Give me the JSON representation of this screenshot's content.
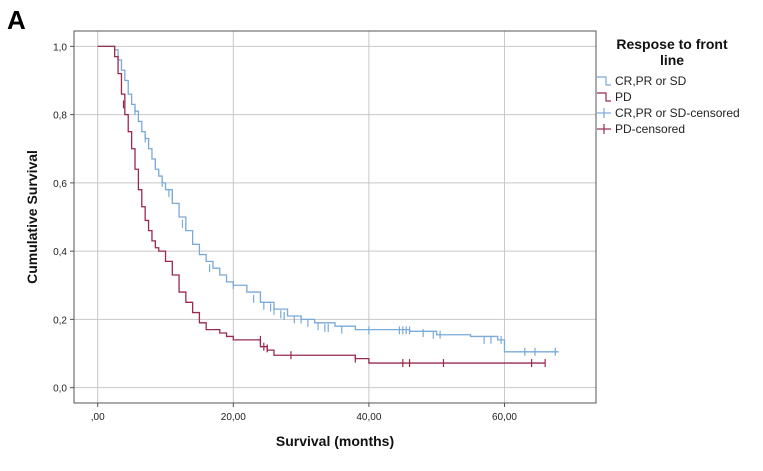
{
  "panel_label": "A",
  "chart_data": {
    "type": "line",
    "subtype": "kaplan-meier",
    "title": "",
    "xlabel": "Survival (months)",
    "ylabel": "Cumulative Survival",
    "xlim": [
      -3.5,
      73.5
    ],
    "ylim": [
      -0.045,
      1.045
    ],
    "xticks": [
      0,
      20,
      40,
      60
    ],
    "xtick_labels": [
      ",00",
      "20,00",
      "40,00",
      "60,00"
    ],
    "yticks": [
      0,
      0.2,
      0.4,
      0.6,
      0.8,
      1.0
    ],
    "ytick_labels": [
      "0,0",
      "0,2",
      "0,4",
      "0,6",
      "0,8",
      "1,0"
    ],
    "grid": true,
    "legend": {
      "title": "Respose to front line",
      "position": "right",
      "entries": [
        {
          "label": "CR,PR or SD",
          "kind": "line",
          "color": "#7aaad8"
        },
        {
          "label": "PD",
          "kind": "line",
          "color": "#9a2a4c"
        },
        {
          "label": "CR,PR or SD-censored",
          "kind": "censor",
          "color": "#7aaad8"
        },
        {
          "label": "PD-censored",
          "kind": "censor",
          "color": "#9a2a4c"
        }
      ]
    },
    "series": [
      {
        "name": "CR,PR or SD",
        "color": "#7aaad8",
        "x": [
          0,
          2,
          2.5,
          3,
          3.5,
          4,
          4.5,
          5,
          5.5,
          6,
          6.5,
          7,
          7.5,
          8,
          8.5,
          9,
          9.5,
          10,
          11,
          12,
          13,
          14,
          15,
          16,
          17,
          18,
          19,
          20,
          22,
          24,
          26,
          28,
          30,
          32,
          35,
          38,
          42,
          46,
          50,
          55,
          59,
          60,
          68
        ],
        "y": [
          1.0,
          1.0,
          0.99,
          0.96,
          0.93,
          0.9,
          0.86,
          0.83,
          0.81,
          0.78,
          0.75,
          0.73,
          0.7,
          0.67,
          0.64,
          0.62,
          0.6,
          0.58,
          0.54,
          0.5,
          0.46,
          0.42,
          0.39,
          0.37,
          0.35,
          0.33,
          0.31,
          0.3,
          0.28,
          0.25,
          0.23,
          0.21,
          0.2,
          0.19,
          0.18,
          0.17,
          0.17,
          0.165,
          0.155,
          0.15,
          0.14,
          0.105,
          0.105
        ]
      },
      {
        "name": "PD",
        "color": "#9a2a4c",
        "x": [
          0,
          2,
          2.5,
          3,
          3.5,
          4,
          4.5,
          5,
          5.5,
          6,
          6.5,
          7,
          7.5,
          8,
          8.5,
          9,
          10,
          11,
          12,
          13,
          14,
          15,
          16,
          17,
          18,
          19,
          20,
          22,
          24,
          25,
          26,
          30,
          38,
          40,
          50,
          66
        ],
        "y": [
          1.0,
          1.0,
          0.97,
          0.92,
          0.86,
          0.8,
          0.75,
          0.7,
          0.64,
          0.58,
          0.53,
          0.49,
          0.46,
          0.43,
          0.41,
          0.4,
          0.37,
          0.33,
          0.28,
          0.25,
          0.22,
          0.19,
          0.17,
          0.17,
          0.16,
          0.15,
          0.14,
          0.14,
          0.12,
          0.11,
          0.095,
          0.095,
          0.085,
          0.072,
          0.072,
          0.072
        ]
      }
    ],
    "censored": [
      {
        "series": "CR,PR or SD",
        "color": "#7aaad8",
        "points": [
          [
            5.5,
            0.81
          ],
          [
            7,
            0.73
          ],
          [
            7.5,
            0.72
          ],
          [
            8.5,
            0.66
          ],
          [
            9.5,
            0.6
          ],
          [
            10.5,
            0.57
          ],
          [
            11,
            0.56
          ],
          [
            12.5,
            0.48
          ],
          [
            13,
            0.47
          ],
          [
            16.5,
            0.35
          ],
          [
            20,
            0.3
          ],
          [
            23,
            0.26
          ],
          [
            24.5,
            0.24
          ],
          [
            25.5,
            0.235
          ],
          [
            26,
            0.225
          ],
          [
            27,
            0.215
          ],
          [
            27.5,
            0.21
          ],
          [
            29,
            0.2
          ],
          [
            30,
            0.2
          ],
          [
            31,
            0.19
          ],
          [
            32.5,
            0.18
          ],
          [
            33.5,
            0.175
          ],
          [
            34,
            0.175
          ],
          [
            36,
            0.17
          ],
          [
            40,
            0.168
          ],
          [
            44.5,
            0.168
          ],
          [
            45,
            0.168
          ],
          [
            45.5,
            0.168
          ],
          [
            46,
            0.168
          ],
          [
            48,
            0.16
          ],
          [
            49.5,
            0.155
          ],
          [
            50.5,
            0.155
          ],
          [
            57,
            0.14
          ],
          [
            58,
            0.14
          ],
          [
            59.5,
            0.14
          ],
          [
            63,
            0.105
          ],
          [
            64.5,
            0.105
          ],
          [
            67.5,
            0.105
          ]
        ]
      },
      {
        "series": "PD",
        "color": "#9a2a4c",
        "points": [
          [
            3.8,
            0.83
          ],
          [
            24,
            0.14
          ],
          [
            24.5,
            0.12
          ],
          [
            25,
            0.115
          ],
          [
            28.5,
            0.095
          ],
          [
            38,
            0.085
          ],
          [
            45,
            0.072
          ],
          [
            46,
            0.072
          ],
          [
            51,
            0.072
          ],
          [
            64,
            0.072
          ],
          [
            66,
            0.072
          ]
        ]
      }
    ]
  }
}
